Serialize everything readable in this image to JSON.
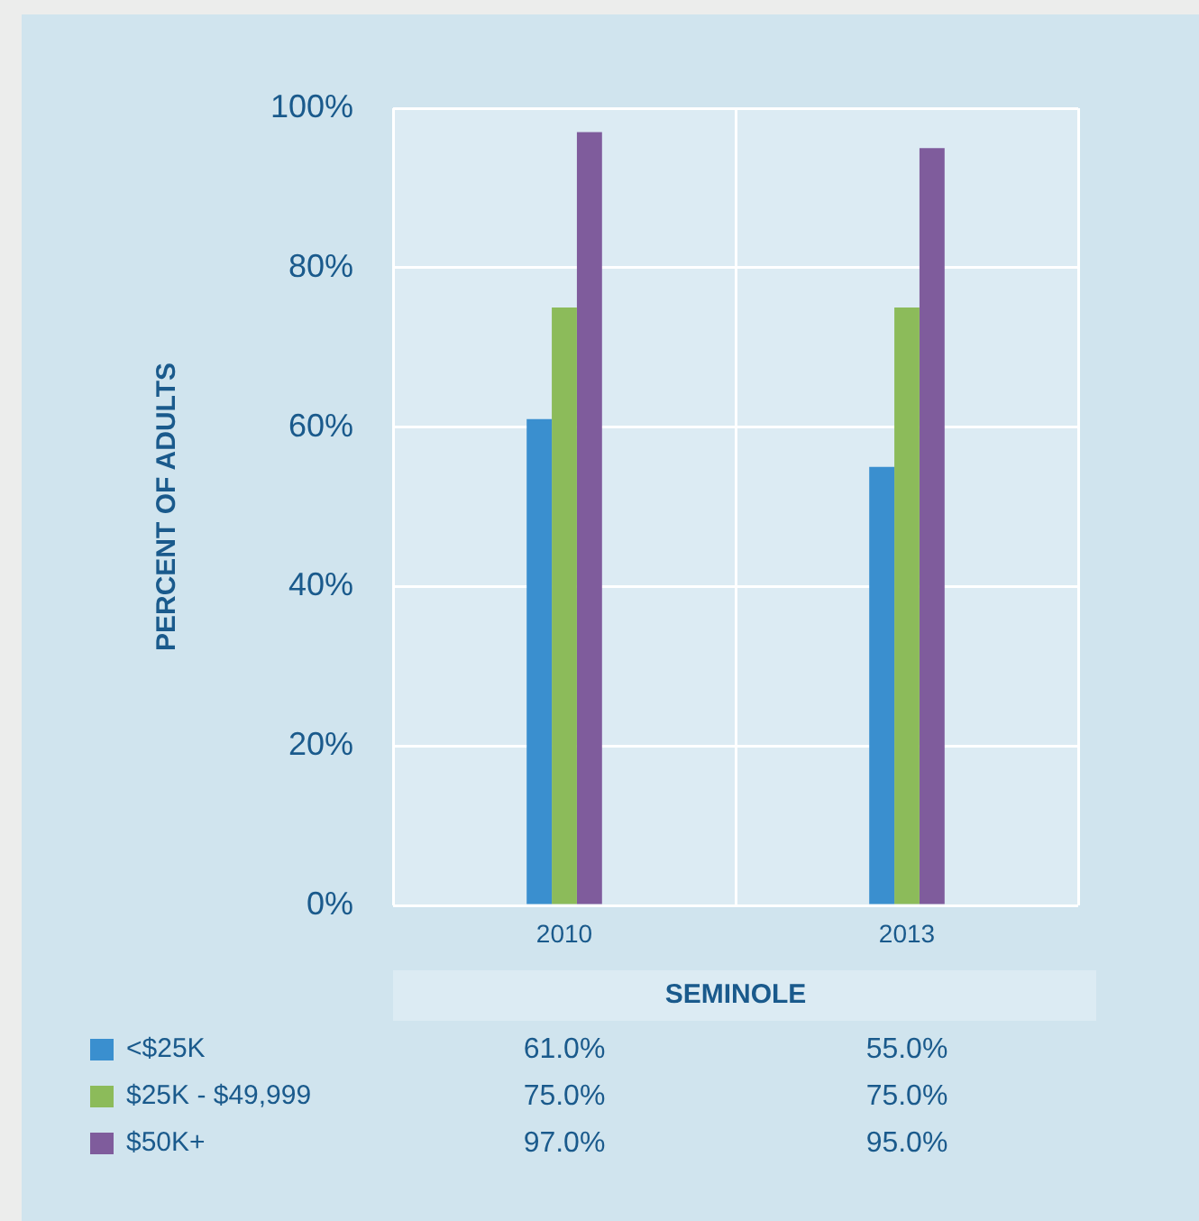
{
  "chart_data": {
    "type": "bar",
    "xlabel": "SEMINOLE",
    "ylabel": "PERCENT OF ADULTS",
    "categories": [
      "2010",
      "2013"
    ],
    "series": [
      {
        "name": "<$25K",
        "color": "#3a8fcf",
        "values": [
          61,
          55
        ],
        "value_labels": [
          "61.0%",
          "55.0%"
        ]
      },
      {
        "name": "$25K - $49,999",
        "color": "#8cbb5a",
        "values": [
          75,
          75
        ],
        "value_labels": [
          "75.0%",
          "75.0%"
        ]
      },
      {
        "name": "$50K+",
        "color": "#7f5c9c",
        "values": [
          97,
          95
        ],
        "value_labels": [
          "97.0%",
          "95.0%"
        ]
      }
    ],
    "ylim": [
      0,
      100
    ],
    "yticks": [
      {
        "value": 0,
        "label": "0%"
      },
      {
        "value": 20,
        "label": "20%"
      },
      {
        "value": 40,
        "label": "40%"
      },
      {
        "value": 60,
        "label": "60%"
      },
      {
        "value": 80,
        "label": "80%"
      },
      {
        "value": 100,
        "label": "100%"
      }
    ],
    "grid": true,
    "legend": "bottom"
  }
}
